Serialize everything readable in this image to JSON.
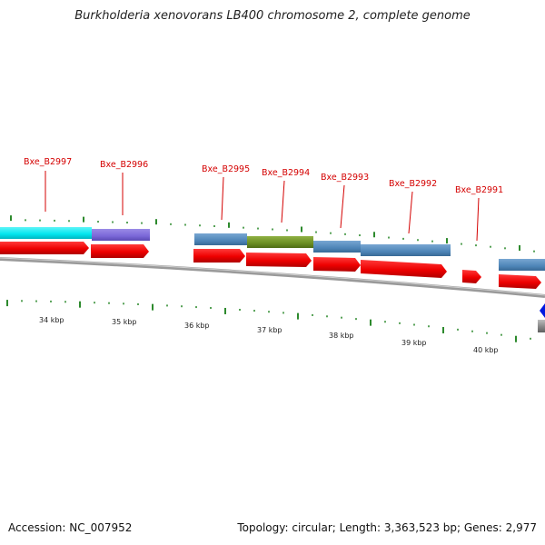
{
  "title": "Burkholderia xenovorans LB400 chromosome 2, complete genome",
  "accession": "Accession: NC_007952",
  "topology": "Topology: circular; Length: 3,363,523 bp; Genes: 2,977",
  "gene_labels": [
    "Bxe_B2997",
    "Bxe_B2996",
    "Bxe_B2995",
    "Bxe_B2994",
    "Bxe_B2993",
    "Bxe_B2992",
    "Bxe_B2991"
  ],
  "kbp_labels": [
    "34 kbp",
    "35 kbp",
    "36 kbp",
    "37 kbp",
    "38 kbp",
    "39 kbp",
    "40 kbp"
  ],
  "colors": {
    "label": "#d40000",
    "gene_arrow": "#ee0000",
    "backbone": "#8c8c8c",
    "tick": "#2d8a2d",
    "cyan_block": "#00e5ee",
    "purple_block": "#7b68d8",
    "blue_block": "#4f86b8",
    "olive_block": "#6b8e23",
    "marker": "#0018e0"
  }
}
